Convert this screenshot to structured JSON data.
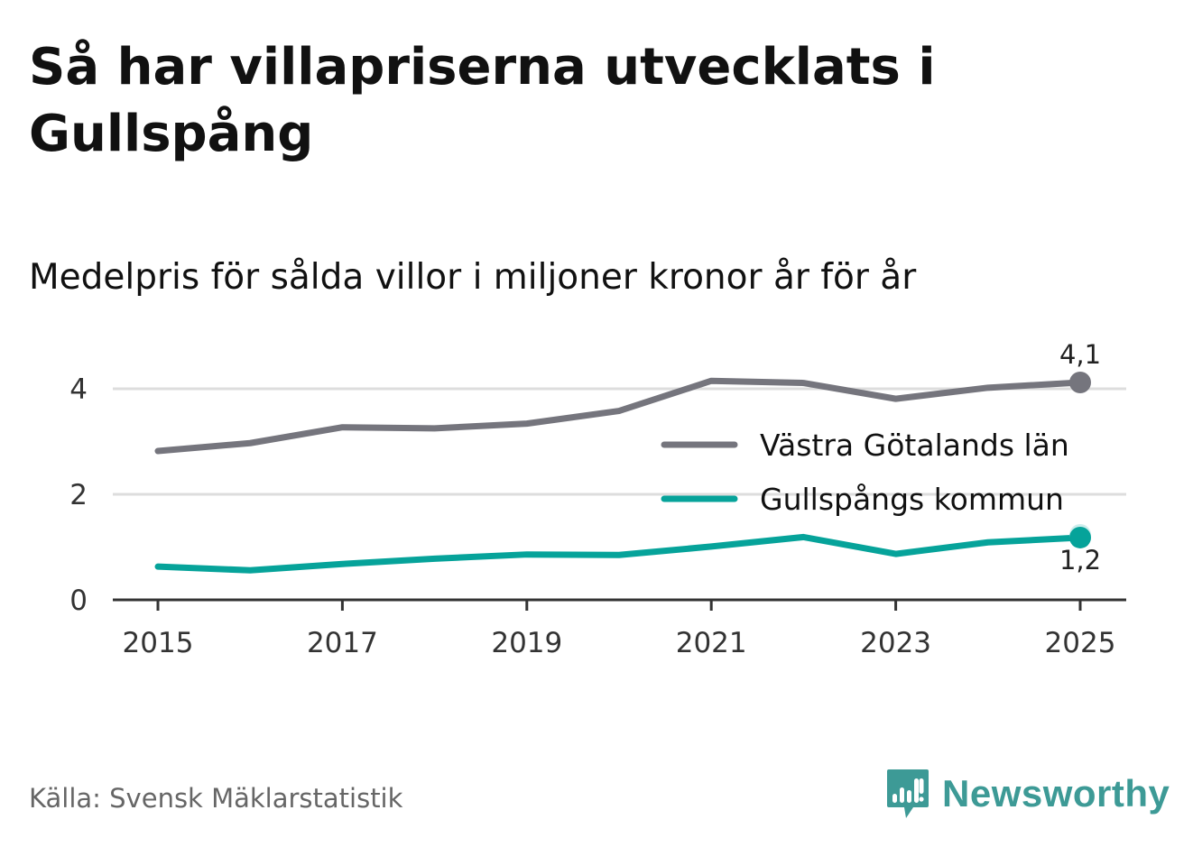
{
  "title": "Så har villapriserna utvecklats i Gullspång",
  "subtitle": "Medelpris för sålda villor i miljoner kronor år för år",
  "source": "Källa: Svensk Mäklarstatistik",
  "brand": "Newsworthy",
  "brand_icon": "bar-chart-speech-bubble-icon",
  "colors": {
    "vg": "#75757d",
    "gullspang": "#06a39a",
    "grid": "#dddddd",
    "axis": "#333333",
    "brand": "#3d9a96"
  },
  "chart_data": {
    "type": "line",
    "x": [
      2015,
      2016,
      2017,
      2018,
      2019,
      2020,
      2021,
      2022,
      2023,
      2024,
      2025
    ],
    "x_ticks": [
      "2015",
      "2017",
      "2019",
      "2021",
      "2023",
      "2025"
    ],
    "y_ticks": [
      "0",
      "2",
      "4"
    ],
    "ylim": [
      0,
      4.5
    ],
    "series": [
      {
        "name": "Västra Götalands län",
        "values": [
          2.82,
          2.97,
          3.27,
          3.25,
          3.34,
          3.58,
          4.15,
          4.11,
          3.81,
          4.02,
          4.12
        ],
        "end_label": "4,1"
      },
      {
        "name": "Gullspångs kommun",
        "values": [
          0.63,
          0.56,
          0.68,
          0.78,
          0.86,
          0.85,
          1.01,
          1.19,
          0.87,
          1.09,
          1.18
        ],
        "end_label": "1,2"
      }
    ],
    "legend_position": "right"
  }
}
